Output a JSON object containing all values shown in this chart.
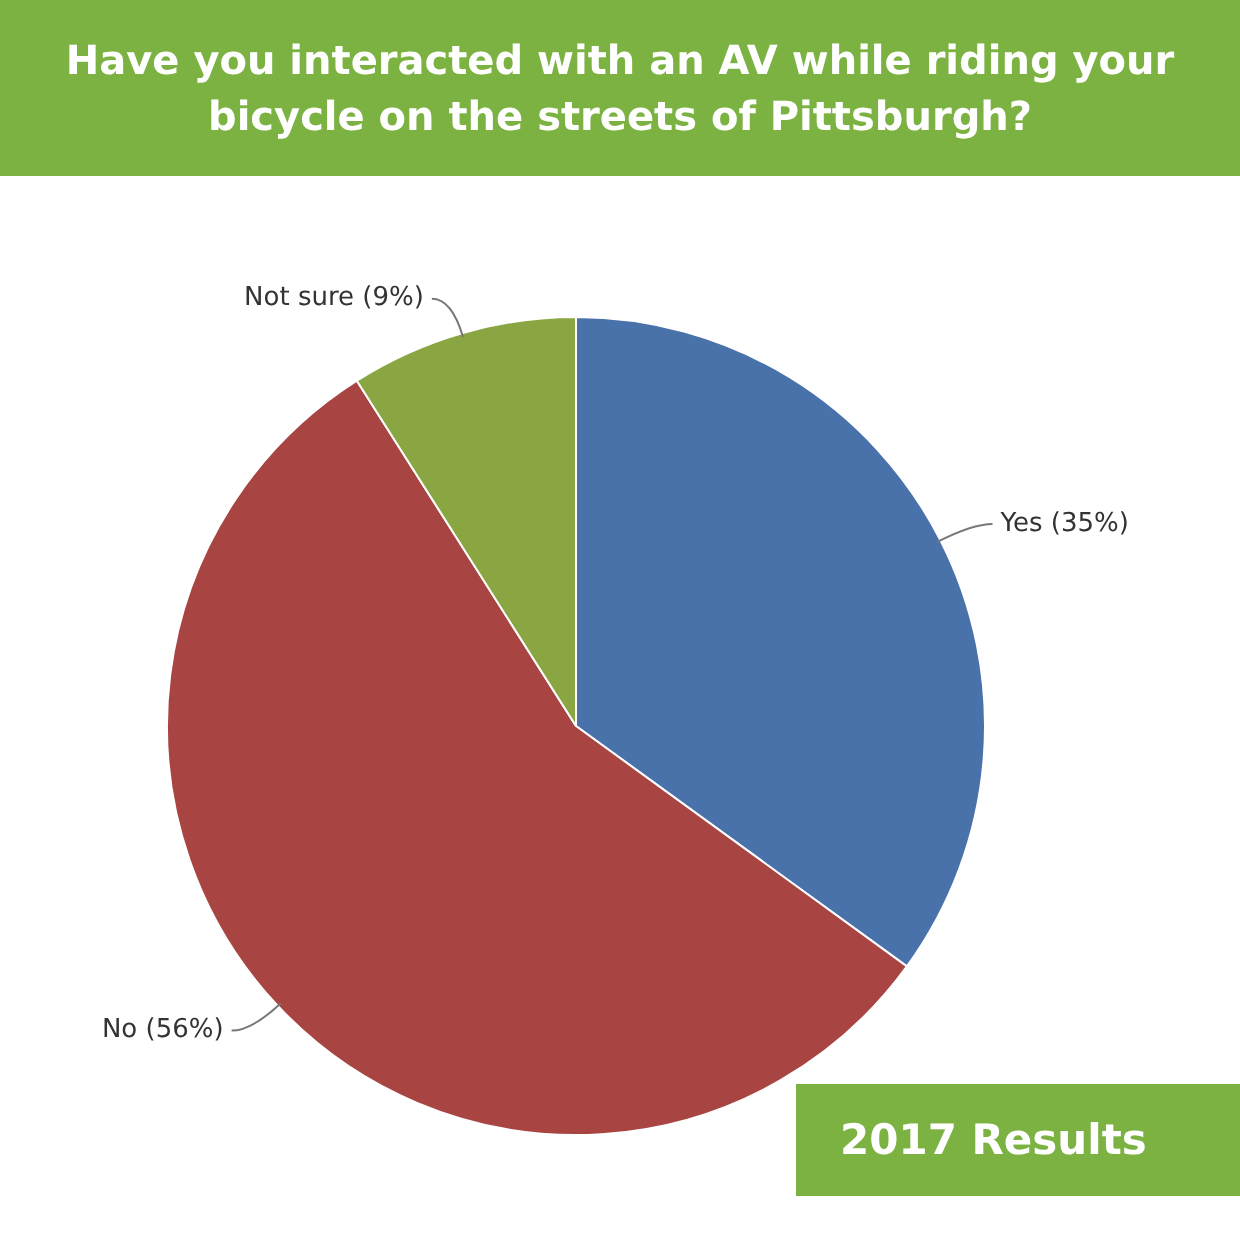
{
  "chart_data": {
    "type": "pie",
    "title": "Have you interacted with an AV while riding your bicycle on the streets of Pittsburgh?",
    "categories": [
      "Yes (35%)",
      "No (56%)",
      "Not sure (9%)"
    ],
    "values": [
      35,
      56,
      9
    ],
    "colors": [
      "#4a72aa",
      "#a84543",
      "#89a642"
    ],
    "annotations": [
      "2017 Results"
    ],
    "legend": false
  }
}
